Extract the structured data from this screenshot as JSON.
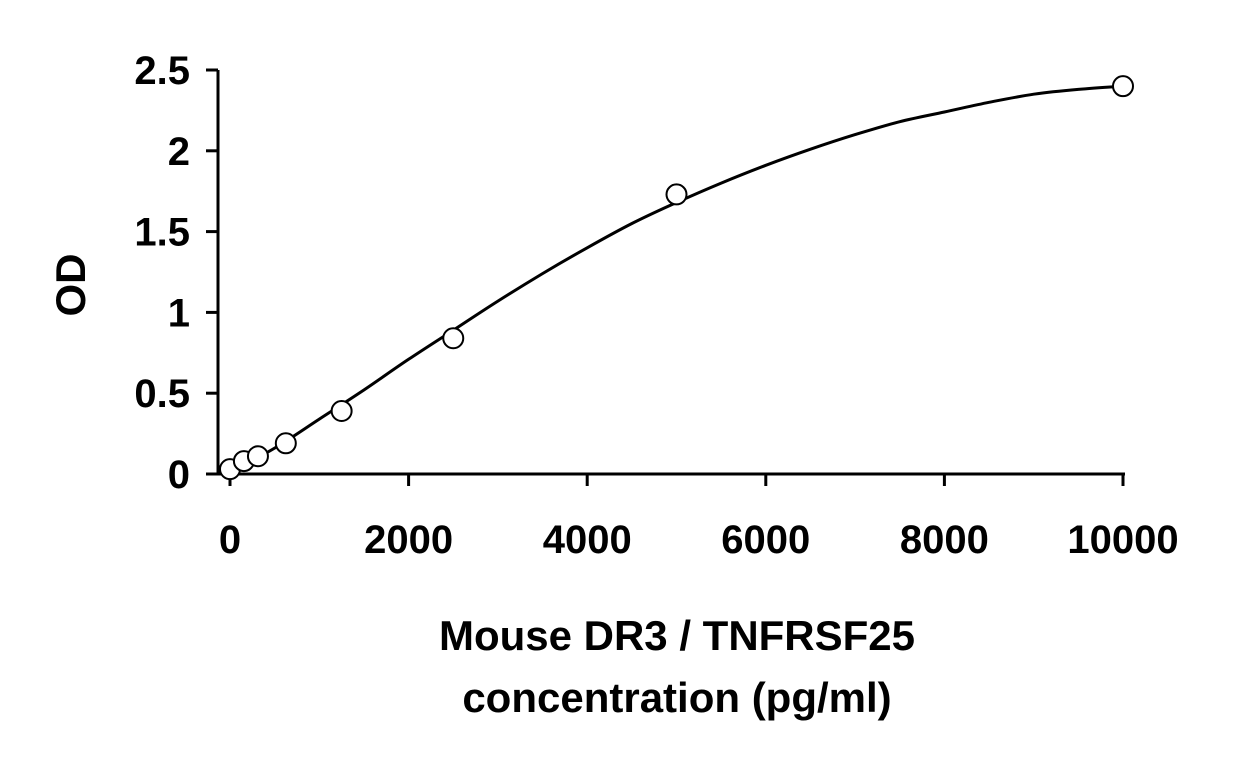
{
  "chart_data": {
    "type": "scatter",
    "title": "",
    "xlabel": [
      "Mouse DR3 / TNFRSF25",
      "concentration (pg/ml)"
    ],
    "ylabel": "OD",
    "xlim": [
      0,
      10000
    ],
    "ylim": [
      0,
      2.5
    ],
    "x_ticks": [
      0,
      2000,
      4000,
      6000,
      8000,
      10000
    ],
    "y_ticks": [
      0,
      0.5,
      1,
      1.5,
      2,
      2.5
    ],
    "x_tick_labels": [
      "0",
      "2000",
      "4000",
      "6000",
      "8000",
      "10000"
    ],
    "y_tick_labels": [
      "0",
      "0.5",
      "1",
      "1.5",
      "2",
      "2.5"
    ],
    "grid": false,
    "legend": "none",
    "series": [
      {
        "marker": "open-circle",
        "x": [
          0,
          156,
          313,
          625,
          1250,
          2500,
          5000,
          10000
        ],
        "y": [
          0.03,
          0.08,
          0.11,
          0.19,
          0.39,
          0.84,
          1.73,
          2.4
        ]
      }
    ],
    "fit_curve": {
      "type": "smooth-fit",
      "x": [
        0,
        500,
        1000,
        1500,
        2000,
        2500,
        3000,
        3500,
        4000,
        4500,
        5000,
        5500,
        6000,
        6500,
        7000,
        7500,
        8000,
        8500,
        9000,
        9500,
        10000
      ],
      "y": [
        0.01,
        0.16,
        0.34,
        0.52,
        0.71,
        0.89,
        1.07,
        1.24,
        1.4,
        1.55,
        1.68,
        1.8,
        1.91,
        2.01,
        2.1,
        2.18,
        2.24,
        2.3,
        2.35,
        2.38,
        2.4
      ]
    },
    "colors": {
      "axis": "#000000",
      "marker_stroke": "#000000",
      "marker_fill": "#ffffff",
      "curve": "#000000"
    }
  }
}
